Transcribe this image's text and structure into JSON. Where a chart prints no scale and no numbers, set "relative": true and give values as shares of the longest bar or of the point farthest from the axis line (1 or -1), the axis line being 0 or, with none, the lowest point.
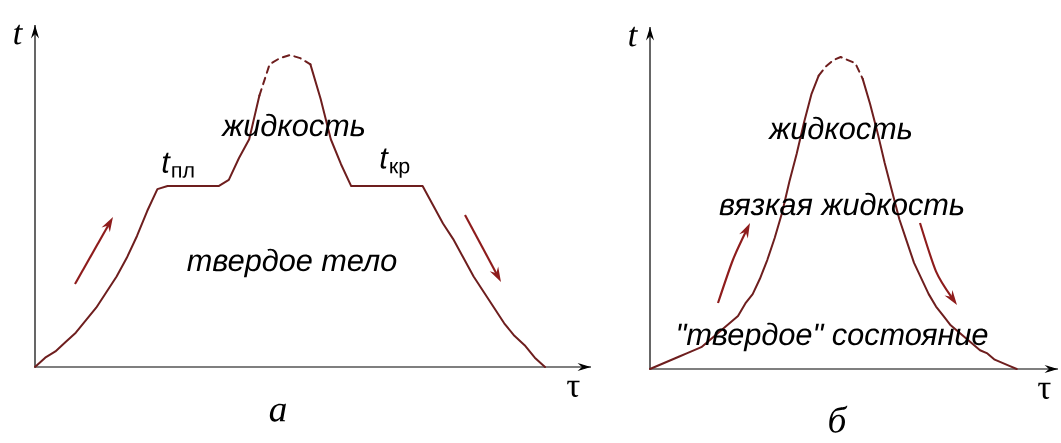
{
  "chart_data": [
    {
      "type": "line",
      "relative": true,
      "title": "а",
      "xlabel": "τ",
      "ylabel": "t",
      "categories": [
        null,
        null,
        null,
        null,
        null,
        null,
        null,
        null,
        null,
        null,
        null,
        null,
        null,
        null,
        null,
        null,
        null,
        null,
        null,
        null,
        null,
        null,
        null,
        null,
        null,
        null,
        null,
        null,
        null,
        null,
        null,
        null,
        null,
        null,
        null,
        null,
        null,
        null,
        null,
        null,
        null,
        null,
        null,
        null,
        null,
        null,
        null,
        null,
        null,
        null,
        null
      ],
      "series": [
        {
          "color": "#6e1e1e",
          "line_style": "solid",
          "values": [
            0,
            0.03,
            0.05,
            0.08,
            0.11,
            0.15,
            0.19,
            0.24,
            0.29,
            0.35,
            0.42,
            0.5,
            0.57,
            0.58,
            0.58,
            0.58,
            0.58,
            0.58,
            0.58,
            0.6,
            0.67,
            0.73,
            0.87,
            null,
            null,
            null,
            null,
            0.97,
            0.86,
            0.73,
            0.65,
            0.58,
            0.58,
            0.58,
            0.58,
            0.58,
            0.58,
            0.58,
            0.58,
            0.52,
            0.46,
            0.41,
            0.35,
            0.29,
            0.24,
            0.19,
            0.14,
            0.1,
            0.07,
            0.03,
            0
          ]
        },
        {
          "color": "#6e1e1e",
          "line_style": "dashed",
          "values": [
            null,
            null,
            null,
            null,
            null,
            null,
            null,
            null,
            null,
            null,
            null,
            null,
            null,
            null,
            null,
            null,
            null,
            null,
            null,
            null,
            null,
            null,
            0.87,
            0.97,
            0.99,
            1.0,
            0.99,
            0.97,
            null,
            null,
            null,
            null,
            null,
            null,
            null,
            null,
            null,
            null,
            null,
            null,
            null,
            null,
            null,
            null,
            null,
            null,
            null,
            null,
            null,
            null,
            null
          ]
        }
      ],
      "annotations": [
        "жидкость",
        {
          "text": "*t*$_{пл}$",
          "y": 0.58
        },
        {
          "text": "*t*$_{кр}$",
          "y": 0.58
        },
        "твердое тело"
      ]
    },
    {
      "type": "line",
      "relative": true,
      "title": "б",
      "xlabel": "τ",
      "ylabel": "t",
      "categories": [
        null,
        null,
        null,
        null,
        null,
        null,
        null,
        null,
        null,
        null,
        null,
        null,
        null,
        null,
        null,
        null,
        null,
        null,
        null,
        null,
        null,
        null,
        null,
        null,
        null,
        null,
        null,
        null,
        null,
        null,
        null,
        null,
        null,
        null,
        null,
        null,
        null,
        null,
        null,
        null,
        null,
        null,
        null,
        null,
        null,
        null,
        null,
        null,
        null,
        null,
        null
      ],
      "series": [
        {
          "color": "#6e1e1e",
          "line_style": "solid",
          "values": [
            0,
            0.01,
            0.02,
            0.03,
            0.04,
            0.05,
            0.06,
            0.07,
            0.09,
            0.11,
            0.13,
            0.15,
            0.17,
            0.21,
            0.24,
            0.29,
            0.35,
            0.42,
            0.5,
            0.6,
            0.69,
            0.79,
            0.88,
            0.94,
            null,
            null,
            null,
            null,
            null,
            0.93,
            0.85,
            0.76,
            0.66,
            0.57,
            0.48,
            0.41,
            0.34,
            0.29,
            0.24,
            0.2,
            0.17,
            0.14,
            0.12,
            0.1,
            0.08,
            0.06,
            0.05,
            0.03,
            0.02,
            0.01,
            0
          ]
        },
        {
          "color": "#6e1e1e",
          "line_style": "dashed",
          "values": [
            null,
            null,
            null,
            null,
            null,
            null,
            null,
            null,
            null,
            null,
            null,
            null,
            null,
            null,
            null,
            null,
            null,
            null,
            null,
            null,
            null,
            null,
            null,
            0.94,
            0.97,
            0.99,
            1.0,
            0.99,
            0.98,
            0.93,
            null,
            null,
            null,
            null,
            null,
            null,
            null,
            null,
            null,
            null,
            null,
            null,
            null,
            null,
            null,
            null,
            null,
            null,
            null,
            null,
            null
          ]
        }
      ],
      "annotations": [
        "жидкость",
        "вязкая жидкость",
        "\"твердое\" состояние"
      ]
    }
  ]
}
